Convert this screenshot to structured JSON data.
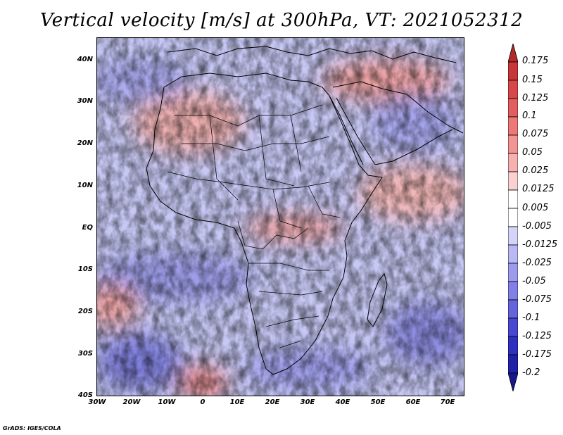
{
  "title": "Vertical velocity [m/s] at 300hPa, VT: 2021052312",
  "credit": "GrADS: IGES/COLA",
  "map": {
    "lat_labels": [
      "40N",
      "30N",
      "20N",
      "10N",
      "EQ",
      "10S",
      "20S",
      "30S",
      "40S"
    ],
    "lon_labels": [
      "30W",
      "20W",
      "10W",
      "0",
      "10E",
      "20E",
      "30E",
      "40E",
      "50E",
      "60E",
      "70E"
    ],
    "lat_range": [
      -40,
      45
    ],
    "lon_range": [
      -30,
      75
    ]
  },
  "colorbar": {
    "labels": [
      "0.175",
      "0.15",
      "0.125",
      "0.1",
      "0.075",
      "0.05",
      "0.025",
      "0.0125",
      "0.005",
      "-0.005",
      "-0.0125",
      "-0.025",
      "-0.05",
      "-0.075",
      "-0.1",
      "-0.125",
      "-0.175",
      "-0.2"
    ],
    "colors": [
      "#b4282a",
      "#c8363a",
      "#d8484a",
      "#e35e5e",
      "#ec7878",
      "#f29494",
      "#f6b0b0",
      "#fad0d0",
      "#ffffff",
      "#ffffff",
      "#d4d4fa",
      "#b8b8f4",
      "#9c9cee",
      "#8080e6",
      "#6464dc",
      "#4848d0",
      "#3030c0",
      "#2020a8",
      "#18188c"
    ]
  }
}
